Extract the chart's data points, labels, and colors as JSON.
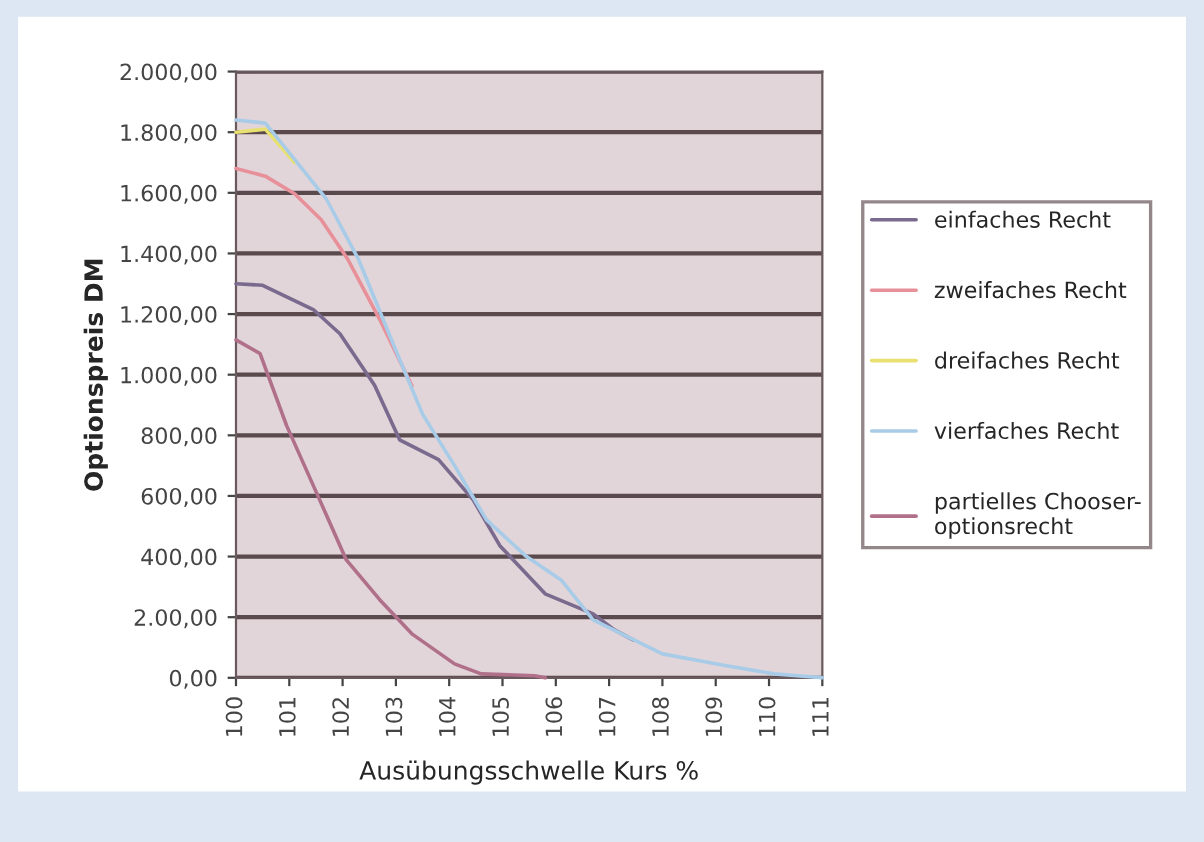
{
  "chart_data": {
    "type": "line",
    "xlabel": "Ausübungsschwelle Kurs %",
    "ylabel": "Optionspreis DM",
    "xlim": [
      100,
      111
    ],
    "xticks": [
      100,
      101,
      102,
      103,
      104,
      105,
      106,
      107,
      108,
      109,
      110,
      111
    ],
    "ylim": [
      0,
      2000
    ],
    "yticks": [
      {
        "value": 0,
        "label": "0,00"
      },
      {
        "value": 200,
        "label": "2.00,00"
      },
      {
        "value": 400,
        "label": "400,00"
      },
      {
        "value": 600,
        "label": "600,00"
      },
      {
        "value": 800,
        "label": "800,00"
      },
      {
        "value": 1000,
        "label": "1.000,00"
      },
      {
        "value": 1200,
        "label": "1.200,00"
      },
      {
        "value": 1400,
        "label": "1.400,00"
      },
      {
        "value": 1600,
        "label": "1.600,00"
      },
      {
        "value": 1800,
        "label": "1.800,00"
      },
      {
        "value": 2000,
        "label": "2.000,00"
      }
    ],
    "grid": "y",
    "legend": "right",
    "marker": "none",
    "line_style": "solid",
    "series": [
      {
        "name": "einfaches Recht",
        "color": "#7a6a8e",
        "x": [
          100,
          100.5,
          101.45,
          101.95,
          102.6,
          103.07,
          103.8,
          104.45,
          104.95,
          105.8,
          106.7,
          107.1,
          107.45
        ],
        "values": [
          1300,
          1295,
          1215,
          1135,
          965,
          785,
          720,
          587,
          436,
          277,
          211,
          158,
          125
        ]
      },
      {
        "name": "zweifaches Recht",
        "color": "#e8909a",
        "x": [
          100,
          100.55,
          101.1,
          101.6,
          102.1,
          102.7,
          103.3
        ],
        "values": [
          1680,
          1655,
          1597,
          1511,
          1380,
          1181,
          963
        ]
      },
      {
        "name": "dreifaches Recht",
        "color": "#e8e070",
        "x": [
          100,
          100.55,
          101.1
        ],
        "values": [
          1800,
          1810,
          1700
        ]
      },
      {
        "name": "vierfaches Recht",
        "color": "#a8cce8",
        "x": [
          100,
          100.55,
          101.1,
          101.7,
          102.3,
          103.0,
          103.5,
          104.1,
          104.7,
          105.45,
          106.1,
          106.7,
          108,
          109.2,
          110.1,
          111
        ],
        "values": [
          1840,
          1830,
          1710,
          1578,
          1380,
          1080,
          870,
          700,
          521,
          400,
          323,
          191,
          79,
          40,
          13,
          0
        ]
      },
      {
        "name": "partielles Chooser-\noptionsrecht",
        "color": "#b0708a",
        "x": [
          100,
          100.45,
          100.95,
          101.57,
          102.07,
          102.7,
          103.3,
          104.1,
          104.6,
          105.6,
          105.8
        ],
        "values": [
          1115,
          1070,
          832,
          587,
          389,
          257,
          145,
          46,
          13,
          7,
          0
        ]
      }
    ]
  }
}
